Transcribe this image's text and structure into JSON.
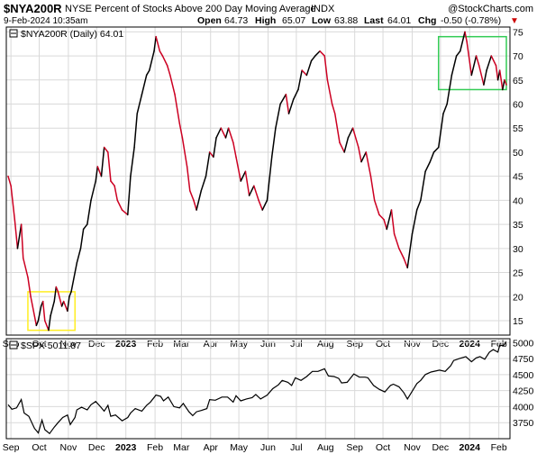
{
  "header": {
    "symbol": "$NYA200R",
    "description": "NYSE Percent of Stocks Above 200 Day Moving Average",
    "exchange": "INDX",
    "watermark": "@StockCharts.com",
    "date": "9-Feb-2024 10:35am",
    "open_label": "Open",
    "open_value": "64.73",
    "high_label": "High",
    "high_value": "65.07",
    "low_label": "Low",
    "low_value": "63.88",
    "last_label": "Last",
    "last_value": "64.01",
    "chg_label": "Chg",
    "chg_value": "-0.50 (-0.78%)",
    "chg_arrow": "▼"
  },
  "colors": {
    "up": "#000000",
    "down": "#cc0022",
    "grid": "#d9d9d9",
    "yellow_box": "#ffee22",
    "green_box": "#33cc55",
    "chg_red": "#cc0000"
  },
  "chart_data": [
    {
      "type": "line",
      "legend": "$NYA200R (Daily) 64.01",
      "ylim": [
        12,
        76
      ],
      "yticks": [
        15,
        20,
        25,
        30,
        35,
        40,
        45,
        50,
        55,
        60,
        65,
        70,
        75
      ],
      "xlim": [
        "2022-08-29",
        "2024-02-09"
      ],
      "xticks": [
        {
          "label": "Sep",
          "date": "2022-09-01",
          "bold": false
        },
        {
          "label": "Oct",
          "date": "2022-10-01",
          "bold": false
        },
        {
          "label": "Nov",
          "date": "2022-11-01",
          "bold": false
        },
        {
          "label": "Dec",
          "date": "2022-12-01",
          "bold": false
        },
        {
          "label": "2023",
          "date": "2023-01-01",
          "bold": true
        },
        {
          "label": "Feb",
          "date": "2023-02-01",
          "bold": false
        },
        {
          "label": "Mar",
          "date": "2023-03-01",
          "bold": false
        },
        {
          "label": "Apr",
          "date": "2023-04-01",
          "bold": false
        },
        {
          "label": "May",
          "date": "2023-05-01",
          "bold": false
        },
        {
          "label": "Jun",
          "date": "2023-06-01",
          "bold": false
        },
        {
          "label": "Jul",
          "date": "2023-07-01",
          "bold": false
        },
        {
          "label": "Aug",
          "date": "2023-08-01",
          "bold": false
        },
        {
          "label": "Sep",
          "date": "2023-09-01",
          "bold": false
        },
        {
          "label": "Oct",
          "date": "2023-10-01",
          "bold": false
        },
        {
          "label": "Nov",
          "date": "2023-11-01",
          "bold": false
        },
        {
          "label": "Dec",
          "date": "2023-12-01",
          "bold": false
        },
        {
          "label": "2024",
          "date": "2024-01-01",
          "bold": true
        },
        {
          "label": "Feb",
          "date": "2024-02-01",
          "bold": false
        }
      ],
      "points": [
        [
          "2022-08-29",
          45
        ],
        [
          "2022-09-01",
          43
        ],
        [
          "2022-09-05",
          36
        ],
        [
          "2022-09-08",
          30
        ],
        [
          "2022-09-12",
          35
        ],
        [
          "2022-09-14",
          28
        ],
        [
          "2022-09-19",
          24
        ],
        [
          "2022-09-22",
          20
        ],
        [
          "2022-09-26",
          16
        ],
        [
          "2022-09-28",
          14
        ],
        [
          "2022-09-30",
          15
        ],
        [
          "2022-10-03",
          18
        ],
        [
          "2022-10-05",
          19
        ],
        [
          "2022-10-07",
          15
        ],
        [
          "2022-10-11",
          13
        ],
        [
          "2022-10-13",
          16
        ],
        [
          "2022-10-17",
          19
        ],
        [
          "2022-10-19",
          22
        ],
        [
          "2022-10-21",
          21
        ],
        [
          "2022-10-25",
          18
        ],
        [
          "2022-10-27",
          19
        ],
        [
          "2022-10-31",
          17
        ],
        [
          "2022-11-02",
          20
        ],
        [
          "2022-11-04",
          21
        ],
        [
          "2022-11-08",
          25
        ],
        [
          "2022-11-10",
          27
        ],
        [
          "2022-11-14",
          30
        ],
        [
          "2022-11-17",
          34
        ],
        [
          "2022-11-21",
          35
        ],
        [
          "2022-11-25",
          40
        ],
        [
          "2022-11-30",
          44
        ],
        [
          "2022-12-02",
          47
        ],
        [
          "2022-12-06",
          45
        ],
        [
          "2022-12-09",
          51
        ],
        [
          "2022-12-13",
          50
        ],
        [
          "2022-12-16",
          44
        ],
        [
          "2022-12-20",
          43
        ],
        [
          "2022-12-23",
          40
        ],
        [
          "2022-12-28",
          38
        ],
        [
          "2023-01-03",
          37
        ],
        [
          "2023-01-06",
          45
        ],
        [
          "2023-01-10",
          51
        ],
        [
          "2023-01-13",
          58
        ],
        [
          "2023-01-18",
          62
        ],
        [
          "2023-01-23",
          66
        ],
        [
          "2023-01-26",
          67
        ],
        [
          "2023-01-31",
          71
        ],
        [
          "2023-02-02",
          74
        ],
        [
          "2023-02-06",
          71
        ],
        [
          "2023-02-09",
          70
        ],
        [
          "2023-02-14",
          68
        ],
        [
          "2023-02-17",
          66
        ],
        [
          "2023-02-22",
          62
        ],
        [
          "2023-02-27",
          56
        ],
        [
          "2023-03-02",
          53
        ],
        [
          "2023-03-07",
          47
        ],
        [
          "2023-03-10",
          42
        ],
        [
          "2023-03-14",
          40
        ],
        [
          "2023-03-17",
          38
        ],
        [
          "2023-03-22",
          42
        ],
        [
          "2023-03-27",
          45
        ],
        [
          "2023-03-31",
          50
        ],
        [
          "2023-04-04",
          49
        ],
        [
          "2023-04-07",
          53
        ],
        [
          "2023-04-12",
          55
        ],
        [
          "2023-04-17",
          53
        ],
        [
          "2023-04-20",
          55
        ],
        [
          "2023-04-25",
          52
        ],
        [
          "2023-04-28",
          49
        ],
        [
          "2023-05-03",
          44
        ],
        [
          "2023-05-08",
          46
        ],
        [
          "2023-05-12",
          41
        ],
        [
          "2023-05-17",
          43
        ],
        [
          "2023-05-22",
          40
        ],
        [
          "2023-05-26",
          38
        ],
        [
          "2023-05-31",
          40
        ],
        [
          "2023-06-05",
          49
        ],
        [
          "2023-06-09",
          55
        ],
        [
          "2023-06-14",
          60
        ],
        [
          "2023-06-20",
          62
        ],
        [
          "2023-06-23",
          58
        ],
        [
          "2023-06-28",
          61
        ],
        [
          "2023-07-03",
          63
        ],
        [
          "2023-07-07",
          67
        ],
        [
          "2023-07-12",
          66
        ],
        [
          "2023-07-17",
          69
        ],
        [
          "2023-07-21",
          70
        ],
        [
          "2023-07-26",
          71
        ],
        [
          "2023-07-31",
          70
        ],
        [
          "2023-08-03",
          65
        ],
        [
          "2023-08-08",
          60
        ],
        [
          "2023-08-11",
          58
        ],
        [
          "2023-08-16",
          52
        ],
        [
          "2023-08-21",
          50
        ],
        [
          "2023-08-25",
          53
        ],
        [
          "2023-08-30",
          55
        ],
        [
          "2023-09-05",
          51
        ],
        [
          "2023-09-08",
          48
        ],
        [
          "2023-09-13",
          50
        ],
        [
          "2023-09-18",
          45
        ],
        [
          "2023-09-22",
          40
        ],
        [
          "2023-09-27",
          37
        ],
        [
          "2023-10-02",
          36
        ],
        [
          "2023-10-05",
          34
        ],
        [
          "2023-10-10",
          38
        ],
        [
          "2023-10-13",
          33
        ],
        [
          "2023-10-18",
          30
        ],
        [
          "2023-10-23",
          28
        ],
        [
          "2023-10-27",
          26
        ],
        [
          "2023-11-01",
          33
        ],
        [
          "2023-11-06",
          38
        ],
        [
          "2023-11-10",
          40
        ],
        [
          "2023-11-15",
          46
        ],
        [
          "2023-11-20",
          48
        ],
        [
          "2023-11-24",
          50
        ],
        [
          "2023-11-29",
          51
        ],
        [
          "2023-12-04",
          58
        ],
        [
          "2023-12-08",
          60
        ],
        [
          "2023-12-13",
          66
        ],
        [
          "2023-12-18",
          70
        ],
        [
          "2023-12-22",
          71
        ],
        [
          "2023-12-27",
          75
        ],
        [
          "2023-12-29",
          73
        ],
        [
          "2024-01-03",
          66
        ],
        [
          "2024-01-08",
          70
        ],
        [
          "2024-01-11",
          68
        ],
        [
          "2024-01-16",
          64
        ],
        [
          "2024-01-19",
          67
        ],
        [
          "2024-01-24",
          70
        ],
        [
          "2024-01-29",
          68
        ],
        [
          "2024-01-31",
          65
        ],
        [
          "2024-02-02",
          67
        ],
        [
          "2024-02-05",
          63
        ],
        [
          "2024-02-07",
          65
        ],
        [
          "2024-02-09",
          64
        ]
      ],
      "highlight_boxes": [
        {
          "name": "yellow-box",
          "x0": "2022-09-19",
          "x1": "2022-11-08",
          "y0": 13,
          "y1": 21
        },
        {
          "name": "green-box",
          "x0": "2023-11-29",
          "x1": "2024-02-09",
          "y0": 63,
          "y1": 74
        }
      ]
    },
    {
      "type": "line",
      "legend": "$SPX 5011.87",
      "ylim": [
        3500,
        5060
      ],
      "yticks": [
        3750,
        4000,
        4250,
        4500,
        4750,
        5000
      ],
      "xlim": [
        "2022-08-29",
        "2024-02-09"
      ],
      "xticks": [
        {
          "label": "Sep",
          "date": "2022-09-01",
          "bold": false
        },
        {
          "label": "Oct",
          "date": "2022-10-01",
          "bold": false
        },
        {
          "label": "Nov",
          "date": "2022-11-01",
          "bold": false
        },
        {
          "label": "Dec",
          "date": "2022-12-01",
          "bold": false
        },
        {
          "label": "2023",
          "date": "2023-01-01",
          "bold": true
        },
        {
          "label": "Feb",
          "date": "2023-02-01",
          "bold": false
        },
        {
          "label": "Mar",
          "date": "2023-03-01",
          "bold": false
        },
        {
          "label": "Apr",
          "date": "2023-04-01",
          "bold": false
        },
        {
          "label": "May",
          "date": "2023-05-01",
          "bold": false
        },
        {
          "label": "Jun",
          "date": "2023-06-01",
          "bold": false
        },
        {
          "label": "Jul",
          "date": "2023-07-01",
          "bold": false
        },
        {
          "label": "Aug",
          "date": "2023-08-01",
          "bold": false
        },
        {
          "label": "Sep",
          "date": "2023-09-01",
          "bold": false
        },
        {
          "label": "Oct",
          "date": "2023-10-01",
          "bold": false
        },
        {
          "label": "Nov",
          "date": "2023-11-01",
          "bold": false
        },
        {
          "label": "Dec",
          "date": "2023-12-01",
          "bold": false
        },
        {
          "label": "2024",
          "date": "2024-01-01",
          "bold": true
        },
        {
          "label": "Feb",
          "date": "2024-02-01",
          "bold": false
        }
      ],
      "points": [
        [
          "2022-08-29",
          4030
        ],
        [
          "2022-09-02",
          3960
        ],
        [
          "2022-09-07",
          3980
        ],
        [
          "2022-09-12",
          4110
        ],
        [
          "2022-09-15",
          3900
        ],
        [
          "2022-09-20",
          3850
        ],
        [
          "2022-09-26",
          3660
        ],
        [
          "2022-09-30",
          3590
        ],
        [
          "2022-10-04",
          3790
        ],
        [
          "2022-10-07",
          3640
        ],
        [
          "2022-10-12",
          3580
        ],
        [
          "2022-10-17",
          3680
        ],
        [
          "2022-10-21",
          3750
        ],
        [
          "2022-10-26",
          3830
        ],
        [
          "2022-10-31",
          3870
        ],
        [
          "2022-11-03",
          3720
        ],
        [
          "2022-11-08",
          3830
        ],
        [
          "2022-11-10",
          3950
        ],
        [
          "2022-11-15",
          3990
        ],
        [
          "2022-11-21",
          3950
        ],
        [
          "2022-11-25",
          4030
        ],
        [
          "2022-11-30",
          4080
        ],
        [
          "2022-12-05",
          4000
        ],
        [
          "2022-12-09",
          3930
        ],
        [
          "2022-12-13",
          4020
        ],
        [
          "2022-12-16",
          3850
        ],
        [
          "2022-12-21",
          3870
        ],
        [
          "2022-12-28",
          3780
        ],
        [
          "2023-01-03",
          3830
        ],
        [
          "2023-01-06",
          3900
        ],
        [
          "2023-01-11",
          3970
        ],
        [
          "2023-01-18",
          3930
        ],
        [
          "2023-01-23",
          4020
        ],
        [
          "2023-01-27",
          4070
        ],
        [
          "2023-02-02",
          4180
        ],
        [
          "2023-02-07",
          4160
        ],
        [
          "2023-02-10",
          4090
        ],
        [
          "2023-02-15",
          4150
        ],
        [
          "2023-02-21",
          4000
        ],
        [
          "2023-02-27",
          3980
        ],
        [
          "2023-03-03",
          4050
        ],
        [
          "2023-03-09",
          3920
        ],
        [
          "2023-03-13",
          3860
        ],
        [
          "2023-03-17",
          3920
        ],
        [
          "2023-03-22",
          3940
        ],
        [
          "2023-03-28",
          3970
        ],
        [
          "2023-03-31",
          4110
        ],
        [
          "2023-04-06",
          4100
        ],
        [
          "2023-04-13",
          4150
        ],
        [
          "2023-04-19",
          4150
        ],
        [
          "2023-04-25",
          4070
        ],
        [
          "2023-04-28",
          4170
        ],
        [
          "2023-05-03",
          4090
        ],
        [
          "2023-05-09",
          4120
        ],
        [
          "2023-05-15",
          4140
        ],
        [
          "2023-05-19",
          4190
        ],
        [
          "2023-05-24",
          4120
        ],
        [
          "2023-05-31",
          4180
        ],
        [
          "2023-06-06",
          4280
        ],
        [
          "2023-06-12",
          4340
        ],
        [
          "2023-06-16",
          4410
        ],
        [
          "2023-06-22",
          4380
        ],
        [
          "2023-06-26",
          4330
        ],
        [
          "2023-06-30",
          4450
        ],
        [
          "2023-07-06",
          4410
        ],
        [
          "2023-07-12",
          4470
        ],
        [
          "2023-07-18",
          4550
        ],
        [
          "2023-07-24",
          4550
        ],
        [
          "2023-07-31",
          4590
        ],
        [
          "2023-08-04",
          4480
        ],
        [
          "2023-08-10",
          4470
        ],
        [
          "2023-08-15",
          4440
        ],
        [
          "2023-08-18",
          4370
        ],
        [
          "2023-08-24",
          4380
        ],
        [
          "2023-08-31",
          4510
        ],
        [
          "2023-09-06",
          4460
        ],
        [
          "2023-09-12",
          4460
        ],
        [
          "2023-09-15",
          4450
        ],
        [
          "2023-09-21",
          4330
        ],
        [
          "2023-09-27",
          4270
        ],
        [
          "2023-10-03",
          4230
        ],
        [
          "2023-10-09",
          4330
        ],
        [
          "2023-10-12",
          4350
        ],
        [
          "2023-10-18",
          4310
        ],
        [
          "2023-10-23",
          4220
        ],
        [
          "2023-10-27",
          4120
        ],
        [
          "2023-11-01",
          4240
        ],
        [
          "2023-11-06",
          4360
        ],
        [
          "2023-11-10",
          4410
        ],
        [
          "2023-11-15",
          4500
        ],
        [
          "2023-11-21",
          4540
        ],
        [
          "2023-11-30",
          4570
        ],
        [
          "2023-12-06",
          4550
        ],
        [
          "2023-12-12",
          4640
        ],
        [
          "2023-12-15",
          4720
        ],
        [
          "2023-12-21",
          4750
        ],
        [
          "2023-12-28",
          4780
        ],
        [
          "2024-01-03",
          4700
        ],
        [
          "2024-01-08",
          4760
        ],
        [
          "2024-01-12",
          4780
        ],
        [
          "2024-01-17",
          4740
        ],
        [
          "2024-01-22",
          4850
        ],
        [
          "2024-01-26",
          4890
        ],
        [
          "2024-01-31",
          4850
        ],
        [
          "2024-02-02",
          4960
        ],
        [
          "2024-02-06",
          4950
        ],
        [
          "2024-02-08",
          5000
        ],
        [
          "2024-02-09",
          5011.87
        ]
      ]
    }
  ]
}
